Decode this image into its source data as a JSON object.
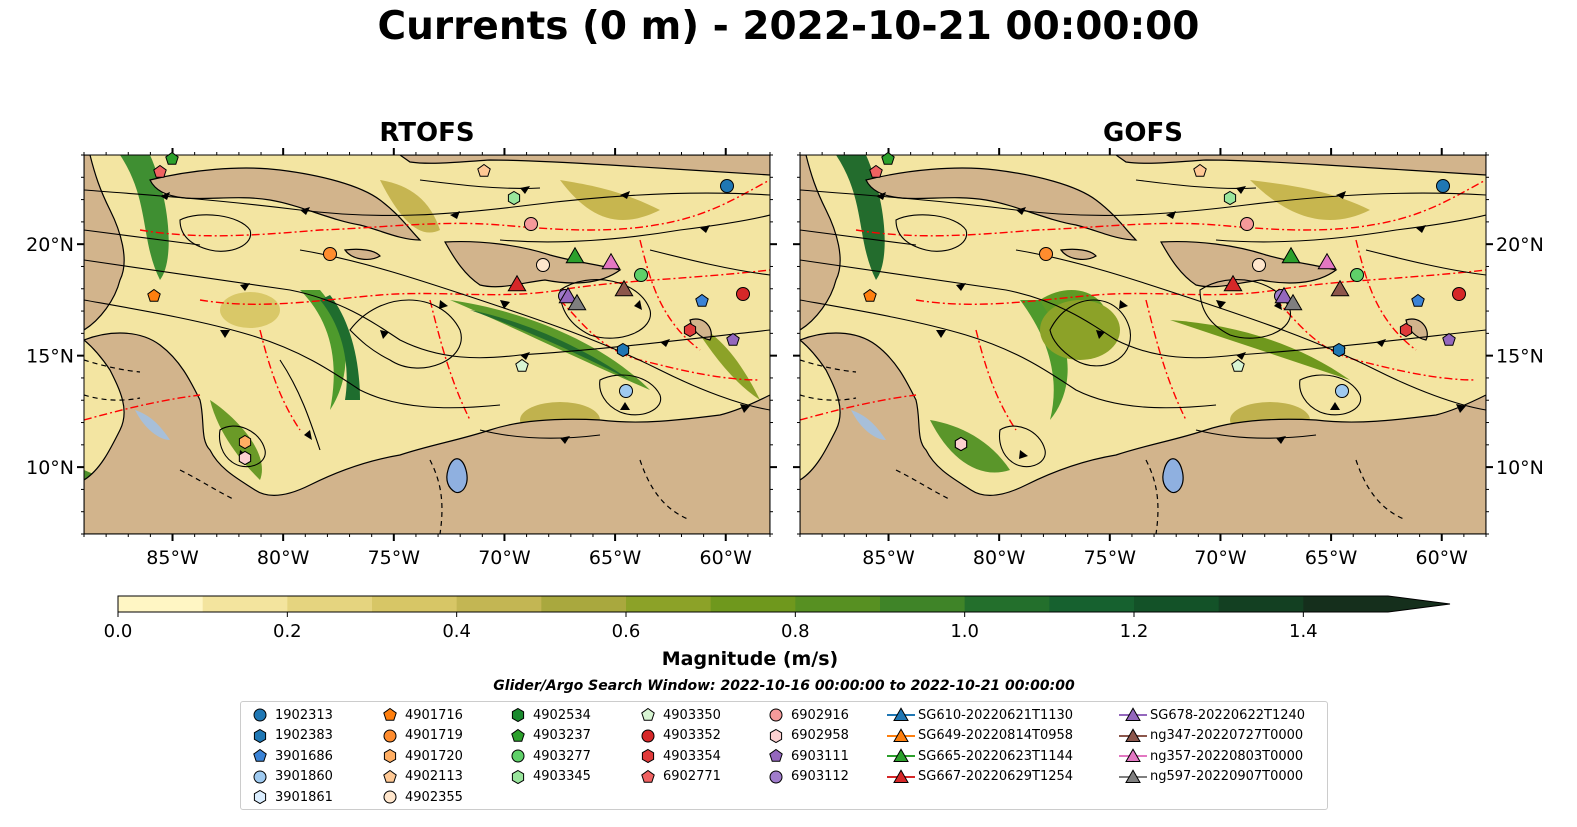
{
  "title": "Currents (0 m) - 2022-10-21 00:00:00",
  "panels": [
    {
      "title": "RTOFS"
    },
    {
      "title": "GOFS"
    }
  ],
  "map": {
    "lon_ticks": [
      "85°W",
      "80°W",
      "75°W",
      "70°W",
      "65°W",
      "60°W"
    ],
    "lat_ticks": [
      "20°N",
      "15°N",
      "10°N"
    ],
    "extent": {
      "lon_min": -89,
      "lon_max": -58,
      "lat_min": 7,
      "lat_max": 24
    },
    "colors": {
      "land": "#d2b48c",
      "lake": "#8fb0e0",
      "eez": "#ff0000",
      "border": "#000000"
    }
  },
  "colorbar": {
    "label": "Magnitude (m/s)",
    "ticks": [
      "0.0",
      "0.2",
      "0.4",
      "0.6",
      "0.8",
      "1.0",
      "1.2",
      "1.4"
    ],
    "range": [
      0,
      1.5
    ],
    "colors": [
      "#fff6c4",
      "#f3e49e",
      "#e5d47f",
      "#d7c666",
      "#c3b653",
      "#a9a83e",
      "#8ca228",
      "#6f981d",
      "#579022",
      "#3f8428",
      "#236f2c",
      "#16612f",
      "#135228",
      "#134022",
      "#152f1c"
    ]
  },
  "search_window": "Glider/Argo Search Window: 2022-10-16 00:00:00 to 2022-10-21 00:00:00",
  "legend": {
    "columns": [
      [
        {
          "label": "1902313",
          "marker": "circle",
          "color": "#1f77b4"
        },
        {
          "label": "1902383",
          "marker": "hexagon",
          "color": "#1f77b4"
        },
        {
          "label": "3901686",
          "marker": "pentagon",
          "color": "#3b83d6"
        },
        {
          "label": "3901860",
          "marker": "circle",
          "color": "#9fcaf0"
        },
        {
          "label": "3901861",
          "marker": "hexagon",
          "color": "#dbeeff"
        }
      ],
      [
        {
          "label": "4901716",
          "marker": "pentagon",
          "color": "#ff7f0e"
        },
        {
          "label": "4901719",
          "marker": "circle",
          "color": "#ff8c2e"
        },
        {
          "label": "4901720",
          "marker": "hexagon",
          "color": "#ffae63"
        },
        {
          "label": "4902113",
          "marker": "pentagon",
          "color": "#ffc995"
        },
        {
          "label": "4902355",
          "marker": "circle",
          "color": "#ffe6cc"
        }
      ],
      [
        {
          "label": "4902534",
          "marker": "hexagon",
          "color": "#1a8a2e"
        },
        {
          "label": "4903237",
          "marker": "pentagon",
          "color": "#2ca02c"
        },
        {
          "label": "4903277",
          "marker": "circle",
          "color": "#5fd069"
        },
        {
          "label": "4903345",
          "marker": "hexagon",
          "color": "#99e59c"
        }
      ],
      [
        {
          "label": "4903350",
          "marker": "pentagon",
          "color": "#d8f5d3"
        },
        {
          "label": "4903352",
          "marker": "circle",
          "color": "#d62728"
        },
        {
          "label": "4903354",
          "marker": "hexagon",
          "color": "#e03a3a"
        },
        {
          "label": "6902771",
          "marker": "pentagon",
          "color": "#f06262"
        }
      ],
      [
        {
          "label": "6902916",
          "marker": "circle",
          "color": "#f59a9a"
        },
        {
          "label": "6902958",
          "marker": "hexagon",
          "color": "#fcd0d0"
        },
        {
          "label": "6903111",
          "marker": "pentagon",
          "color": "#9467bd"
        },
        {
          "label": "6903112",
          "marker": "circle",
          "color": "#a07ccc"
        }
      ],
      [
        {
          "label": "SG610-20220621T1130",
          "marker": "triangle",
          "color": "#1f77b4"
        },
        {
          "label": "SG649-20220814T0958",
          "marker": "triangle",
          "color": "#ff7f0e"
        },
        {
          "label": "SG665-20220623T1144",
          "marker": "triangle",
          "color": "#2ca02c"
        },
        {
          "label": "SG667-20220629T1254",
          "marker": "triangle",
          "color": "#d62728"
        }
      ],
      [
        {
          "label": "SG678-20220622T1240",
          "marker": "triangle",
          "color": "#9467bd"
        },
        {
          "label": "ng347-20220727T0000",
          "marker": "triangle",
          "color": "#8c564b"
        },
        {
          "label": "ng357-20220803T0000",
          "marker": "triangle",
          "color": "#e377c2"
        },
        {
          "label": "ng597-20220907T0000",
          "marker": "triangle",
          "color": "#7f7f7f"
        }
      ]
    ]
  }
}
